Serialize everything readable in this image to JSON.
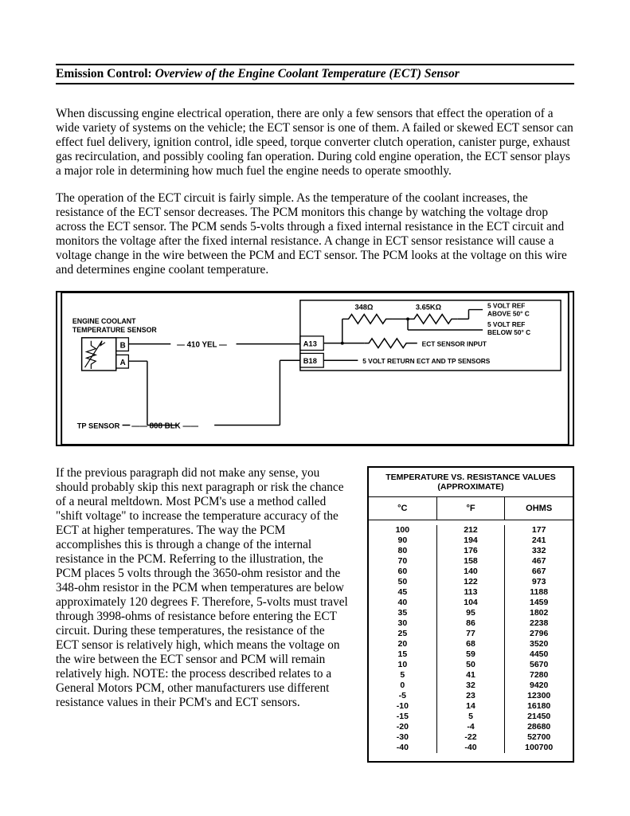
{
  "title": {
    "category": "Emission Control:",
    "subject": "Overview of the Engine Coolant Temperature (ECT) Sensor"
  },
  "paragraphs": {
    "p1": "When discussing engine electrical operation, there are only a few sensors that effect the operation of a wide variety of systems on the vehicle; the ECT sensor is one of them.  A failed or skewed ECT sensor can effect fuel delivery, ignition control, idle speed, torque converter clutch operation, canister purge, exhaust gas recirculation, and possibly cooling fan operation.  During cold engine operation, the ECT sensor plays a major role in determining how much fuel the engine needs to operate smoothly.",
    "p2": "The operation of the ECT circuit is fairly simple.  As the temperature of the coolant increases, the resistance of the ECT sensor decreases.  The PCM monitors this change by watching the voltage drop across the ECT sensor.  The PCM sends 5-volts through a fixed internal resistance in the ECT circuit and monitors the voltage after the fixed internal resistance.  A change in ECT sensor resistance will cause a voltage change in the wire between the PCM and ECT sensor.  The PCM looks at the voltage on this wire and determines engine coolant temperature.",
    "p3": "If the previous paragraph did not make any sense, you should probably skip this next paragraph or risk the chance of a neural meltdown.  Most PCM's use a method called \"shift voltage\" to increase the temperature accuracy of the ECT at higher temperatures.  The way the PCM accomplishes this is through a change of the internal resistance in the PCM.  Referring to the illustration, the PCM places 5 volts through the 3650-ohm resistor and the 348-ohm resistor in the PCM when temperatures are below approximately 120 degrees F.  Therefore, 5-volts must travel through 3998-ohms of resistance before entering the ECT circuit.  During these temperatures, the resistance of the ECT sensor is relatively high, which means the voltage on the wire between the ECT sensor and PCM will remain relatively high.  NOTE: the process described relates to a General Motors PCM, other manufacturers use different resistance values in their PCM's and ECT sensors."
  },
  "diagram": {
    "ect_label": "ENGINE COOLANT TEMPERATURE SENSOR",
    "tp_label": "TP SENSOR",
    "pin_b": "B",
    "pin_a": "A",
    "wire1": "410 YEL",
    "wire2": "808 BLK",
    "pcm_pin1": "A13",
    "pcm_pin2": "B18",
    "r1_label": "348Ω",
    "r2_label": "3.65KΩ",
    "ref_above": "5 VOLT REF ABOVE 50° C",
    "ref_below": "5 VOLT REF BELOW 50° C",
    "ect_input": "ECT SENSOR INPUT",
    "return_label": "5 VOLT RETURN ECT AND TP SENSORS"
  },
  "table": {
    "title": "TEMPERATURE VS. RESISTANCE VALUES (APPROXIMATE)",
    "col_c": "°C",
    "col_f": "°F",
    "col_ohms": "OHMS",
    "rows": [
      {
        "c": "100",
        "f": "212",
        "ohms": "177"
      },
      {
        "c": "90",
        "f": "194",
        "ohms": "241"
      },
      {
        "c": "80",
        "f": "176",
        "ohms": "332"
      },
      {
        "c": "70",
        "f": "158",
        "ohms": "467"
      },
      {
        "c": "60",
        "f": "140",
        "ohms": "667"
      },
      {
        "c": "50",
        "f": "122",
        "ohms": "973"
      },
      {
        "c": "45",
        "f": "113",
        "ohms": "1188"
      },
      {
        "c": "40",
        "f": "104",
        "ohms": "1459"
      },
      {
        "c": "35",
        "f": "95",
        "ohms": "1802"
      },
      {
        "c": "30",
        "f": "86",
        "ohms": "2238"
      },
      {
        "c": "25",
        "f": "77",
        "ohms": "2796"
      },
      {
        "c": "20",
        "f": "68",
        "ohms": "3520"
      },
      {
        "c": "15",
        "f": "59",
        "ohms": "4450"
      },
      {
        "c": "10",
        "f": "50",
        "ohms": "5670"
      },
      {
        "c": "5",
        "f": "41",
        "ohms": "7280"
      },
      {
        "c": "0",
        "f": "32",
        "ohms": "9420"
      },
      {
        "c": "-5",
        "f": "23",
        "ohms": "12300"
      },
      {
        "c": "-10",
        "f": "14",
        "ohms": "16180"
      },
      {
        "c": "-15",
        "f": "5",
        "ohms": "21450"
      },
      {
        "c": "-20",
        "f": "-4",
        "ohms": "28680"
      },
      {
        "c": "-30",
        "f": "-22",
        "ohms": "52700"
      },
      {
        "c": "-40",
        "f": "-40",
        "ohms": "100700"
      }
    ]
  }
}
